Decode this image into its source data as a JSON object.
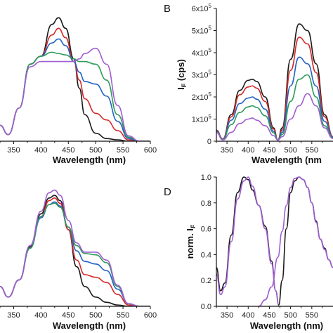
{
  "colors": {
    "black": "#1a1a1a",
    "red": "#d42a2a",
    "blue": "#2262c4",
    "green": "#2e9a5a",
    "purple": "#a05ed0"
  },
  "chart_data": [
    {
      "id": "A",
      "panel_letter": "",
      "type": "line",
      "xlabel": "Wavelength (nm)",
      "ylabel": "",
      "xlim": [
        325,
        600
      ],
      "ylim": [
        0,
        1
      ],
      "xticks": [
        "350",
        "400",
        "450",
        "500",
        "550",
        "600"
      ],
      "series": [
        {
          "color": "black",
          "x": [
            325,
            340,
            360,
            380,
            400,
            420,
            432,
            445,
            460,
            470,
            480,
            500,
            520,
            540,
            560,
            580,
            600
          ],
          "y": [
            0.12,
            0.05,
            0.25,
            0.58,
            0.64,
            0.88,
            0.93,
            0.85,
            0.62,
            0.4,
            0.2,
            0.06,
            0.02,
            0.01,
            0,
            0,
            0
          ]
        },
        {
          "color": "red",
          "x": [
            325,
            340,
            360,
            380,
            400,
            420,
            432,
            445,
            460,
            470,
            480,
            500,
            520,
            540,
            560,
            580,
            600
          ],
          "y": [
            0.12,
            0.05,
            0.25,
            0.58,
            0.64,
            0.8,
            0.85,
            0.78,
            0.6,
            0.46,
            0.32,
            0.21,
            0.16,
            0.08,
            0.01,
            0,
            0
          ]
        },
        {
          "color": "blue",
          "x": [
            325,
            340,
            360,
            380,
            400,
            420,
            432,
            445,
            460,
            470,
            480,
            500,
            520,
            540,
            560,
            580,
            600
          ],
          "y": [
            0.12,
            0.05,
            0.25,
            0.58,
            0.64,
            0.74,
            0.77,
            0.72,
            0.6,
            0.52,
            0.45,
            0.43,
            0.34,
            0.15,
            0.02,
            0,
            0
          ]
        },
        {
          "color": "green",
          "x": [
            325,
            340,
            360,
            380,
            400,
            420,
            432,
            445,
            460,
            470,
            480,
            500,
            520,
            540,
            560,
            580,
            600
          ],
          "y": [
            0.12,
            0.05,
            0.25,
            0.58,
            0.64,
            0.67,
            0.66,
            0.65,
            0.62,
            0.6,
            0.6,
            0.58,
            0.46,
            0.2,
            0.03,
            0,
            0
          ]
        },
        {
          "color": "purple",
          "x": [
            325,
            340,
            360,
            380,
            400,
            420,
            432,
            445,
            460,
            470,
            480,
            500,
            520,
            540,
            560,
            580,
            600
          ],
          "y": [
            0.12,
            0.05,
            0.25,
            0.56,
            0.6,
            0.6,
            0.6,
            0.6,
            0.6,
            0.62,
            0.66,
            0.7,
            0.58,
            0.27,
            0.04,
            0,
            0
          ]
        }
      ]
    },
    {
      "id": "B",
      "panel_letter": "B",
      "type": "line",
      "xlabel": "Wavelength (nm",
      "ylabel_main": "I",
      "ylabel_sub": "F",
      "ylabel_tail": " (cps)",
      "xlim": [
        325,
        600
      ],
      "ylim": [
        0,
        600000
      ],
      "xticks": [
        "350",
        "400",
        "450",
        "500",
        "550"
      ],
      "ytick_values": [
        0,
        100000,
        200000,
        300000,
        400000,
        500000,
        600000
      ],
      "ytick_mantissa": [
        "0",
        "1x10",
        "2x10",
        "3x10",
        "4x10",
        "5x10",
        "6x10"
      ],
      "ytick_exp": [
        "",
        "5",
        "5",
        "5",
        "5",
        "5",
        "5"
      ],
      "series": [
        {
          "color": "black",
          "x": [
            325,
            340,
            360,
            380,
            400,
            410,
            420,
            440,
            460,
            470,
            480,
            500,
            520,
            540,
            560,
            580,
            600
          ],
          "y": [
            50000,
            10000,
            120000,
            230000,
            275000,
            280000,
            270000,
            200000,
            60000,
            5000,
            60000,
            370000,
            530000,
            500000,
            350000,
            120000,
            20000
          ]
        },
        {
          "color": "red",
          "x": [
            325,
            340,
            360,
            380,
            400,
            410,
            420,
            440,
            460,
            470,
            480,
            500,
            520,
            540,
            560,
            580,
            600
          ],
          "y": [
            48000,
            10000,
            110000,
            210000,
            245000,
            250000,
            240000,
            180000,
            55000,
            5000,
            50000,
            320000,
            470000,
            440000,
            310000,
            110000,
            20000
          ]
        },
        {
          "color": "blue",
          "x": [
            325,
            340,
            360,
            380,
            400,
            410,
            420,
            440,
            460,
            470,
            480,
            500,
            520,
            540,
            560,
            580,
            600
          ],
          "y": [
            45000,
            9000,
            95000,
            170000,
            195000,
            200000,
            190000,
            145000,
            45000,
            5000,
            40000,
            250000,
            380000,
            350000,
            250000,
            90000,
            18000
          ]
        },
        {
          "color": "green",
          "x": [
            325,
            340,
            360,
            380,
            400,
            410,
            420,
            440,
            460,
            470,
            480,
            500,
            520,
            540,
            560,
            580,
            600
          ],
          "y": [
            42000,
            8000,
            75000,
            130000,
            155000,
            160000,
            152000,
            115000,
            38000,
            5000,
            30000,
            180000,
            280000,
            300000,
            200000,
            70000,
            15000
          ]
        },
        {
          "color": "purple",
          "x": [
            325,
            340,
            360,
            380,
            400,
            410,
            420,
            440,
            460,
            470,
            480,
            500,
            520,
            540,
            560,
            580,
            600
          ],
          "y": [
            40000,
            6000,
            40000,
            80000,
            100000,
            105000,
            95000,
            70000,
            25000,
            5000,
            20000,
            100000,
            160000,
            215000,
            160000,
            60000,
            12000
          ]
        }
      ]
    },
    {
      "id": "C",
      "panel_letter": "",
      "type": "line",
      "xlabel": "Wavelength (nm)",
      "ylabel": "",
      "xlim": [
        325,
        600
      ],
      "ylim": [
        0,
        1
      ],
      "xticks": [
        "350",
        "400",
        "450",
        "500",
        "550",
        "600"
      ],
      "series": [
        {
          "color": "black",
          "x": [
            325,
            340,
            360,
            380,
            400,
            415,
            425,
            435,
            450,
            465,
            480,
            500,
            520,
            540,
            560,
            580,
            600
          ],
          "y": [
            0.15,
            0.07,
            0.2,
            0.45,
            0.7,
            0.82,
            0.84,
            0.8,
            0.58,
            0.3,
            0.15,
            0.07,
            0.03,
            0.01,
            0,
            0,
            0
          ]
        },
        {
          "color": "red",
          "x": [
            325,
            340,
            360,
            380,
            400,
            415,
            425,
            435,
            450,
            465,
            480,
            500,
            520,
            540,
            560,
            580,
            600
          ],
          "y": [
            0.15,
            0.07,
            0.2,
            0.44,
            0.68,
            0.8,
            0.82,
            0.78,
            0.58,
            0.35,
            0.24,
            0.22,
            0.18,
            0.09,
            0.01,
            0,
            0
          ]
        },
        {
          "color": "blue",
          "x": [
            325,
            340,
            360,
            380,
            400,
            415,
            425,
            435,
            450,
            465,
            480,
            500,
            520,
            540,
            560,
            580,
            600
          ],
          "y": [
            0.15,
            0.07,
            0.2,
            0.44,
            0.67,
            0.77,
            0.79,
            0.76,
            0.6,
            0.42,
            0.34,
            0.32,
            0.27,
            0.13,
            0.02,
            0,
            0
          ]
        },
        {
          "color": "green",
          "x": [
            325,
            340,
            360,
            380,
            400,
            415,
            425,
            435,
            450,
            465,
            480,
            500,
            520,
            540,
            560,
            580,
            600
          ],
          "y": [
            0.15,
            0.07,
            0.2,
            0.44,
            0.68,
            0.77,
            0.78,
            0.75,
            0.6,
            0.46,
            0.4,
            0.39,
            0.33,
            0.15,
            0.02,
            0,
            0
          ]
        },
        {
          "color": "purple",
          "x": [
            325,
            340,
            360,
            380,
            400,
            415,
            425,
            435,
            450,
            465,
            480,
            500,
            520,
            540,
            560,
            580,
            600
          ],
          "y": [
            0.15,
            0.07,
            0.2,
            0.46,
            0.72,
            0.86,
            0.88,
            0.84,
            0.65,
            0.48,
            0.41,
            0.41,
            0.35,
            0.16,
            0.02,
            0,
            0
          ]
        }
      ]
    },
    {
      "id": "D",
      "panel_letter": "D",
      "type": "line",
      "xlabel": "Wavelength (nm)",
      "ylabel": "norm. I",
      "ylabel_sub": "F",
      "xlim": [
        325,
        600
      ],
      "ylim": [
        0,
        1.0
      ],
      "xticks": [
        "350",
        "400",
        "450",
        "500",
        "550"
      ],
      "yticks": [
        "0.0",
        "0.2",
        "0.4",
        "0.6",
        "0.8",
        "1.0"
      ],
      "series": [
        {
          "color": "black",
          "x": [
            325,
            335,
            345,
            360,
            375,
            390,
            400,
            410,
            425,
            440,
            455,
            465,
            472
          ],
          "y": [
            0.3,
            0.12,
            0.18,
            0.55,
            0.88,
            1.0,
            0.98,
            0.9,
            0.78,
            0.62,
            0.35,
            0.12,
            0.01
          ]
        },
        {
          "color": "purple",
          "x": [
            325,
            335,
            345,
            360,
            375,
            390,
            400,
            410,
            425,
            440,
            455,
            465,
            472
          ],
          "y": [
            0.25,
            0.09,
            0.15,
            0.5,
            0.83,
            0.97,
            1.0,
            0.93,
            0.78,
            0.6,
            0.33,
            0.12,
            0.01
          ]
        },
        {
          "color": "black",
          "x": [
            472,
            480,
            490,
            500,
            510,
            520,
            530,
            540,
            550,
            560,
            570,
            580,
            590,
            600
          ],
          "y": [
            0.01,
            0.2,
            0.6,
            0.88,
            0.97,
            1.0,
            0.98,
            0.92,
            0.8,
            0.66,
            0.52,
            0.45,
            0.36,
            0.3
          ]
        },
        {
          "color": "purple",
          "x": [
            425,
            440,
            455,
            470,
            480,
            490,
            500,
            510,
            520,
            530,
            540,
            550,
            560,
            570,
            580,
            590,
            600
          ],
          "y": [
            0.0,
            0.05,
            0.15,
            0.38,
            0.58,
            0.78,
            0.92,
            0.99,
            1.0,
            0.98,
            0.92,
            0.8,
            0.65,
            0.52,
            0.44,
            0.36,
            0.3
          ]
        }
      ]
    }
  ]
}
